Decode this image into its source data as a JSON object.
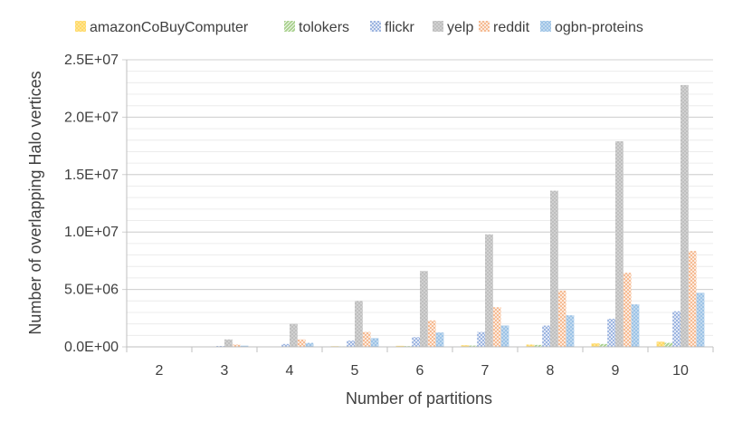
{
  "chart_data": {
    "type": "bar",
    "title": "",
    "xlabel": "Number of partitions",
    "ylabel": "Number of overlapping Halo vertices",
    "categories": [
      "2",
      "3",
      "4",
      "5",
      "6",
      "7",
      "8",
      "9",
      "10"
    ],
    "ylim": [
      0,
      25000000
    ],
    "y_ticks": [
      {
        "value": 0,
        "label": "0.0E+00"
      },
      {
        "value": 5000000,
        "label": "5.0E+06"
      },
      {
        "value": 10000000,
        "label": "1.0E+07"
      },
      {
        "value": 15000000,
        "label": "1.5E+07"
      },
      {
        "value": 20000000,
        "label": "2.0E+07"
      },
      {
        "value": 25000000,
        "label": "2.5E+07"
      }
    ],
    "minor_grid_step": 1000000,
    "grid": true,
    "legend_position": "top",
    "series": [
      {
        "name": "amazonCoBuyComputer",
        "color": "#FFD966",
        "pattern": "dots",
        "values": [
          0,
          15000,
          35000,
          60000,
          90000,
          140000,
          200000,
          300000,
          450000
        ]
      },
      {
        "name": "tolokers",
        "color": "#A9D18E",
        "pattern": "diagonal",
        "values": [
          0,
          10000,
          25000,
          45000,
          70000,
          110000,
          170000,
          250000,
          350000
        ]
      },
      {
        "name": "flickr",
        "color": "#8FAADC",
        "pattern": "crosshatch",
        "values": [
          0,
          80000,
          250000,
          550000,
          850000,
          1300000,
          1850000,
          2450000,
          3100000
        ]
      },
      {
        "name": "yelp",
        "color": "#BFBFBF",
        "pattern": "dots",
        "values": [
          0,
          650000,
          2000000,
          4000000,
          6600000,
          9800000,
          13600000,
          17900000,
          22800000
        ]
      },
      {
        "name": "reddit",
        "color": "#F4B183",
        "pattern": "crosshatch",
        "values": [
          0,
          200000,
          650000,
          1300000,
          2300000,
          3450000,
          4900000,
          6450000,
          8350000
        ]
      },
      {
        "name": "ogbn-proteins",
        "color": "#9DC3E6",
        "pattern": "dashes",
        "values": [
          0,
          100000,
          350000,
          750000,
          1250000,
          1850000,
          2750000,
          3700000,
          4700000
        ]
      }
    ]
  }
}
